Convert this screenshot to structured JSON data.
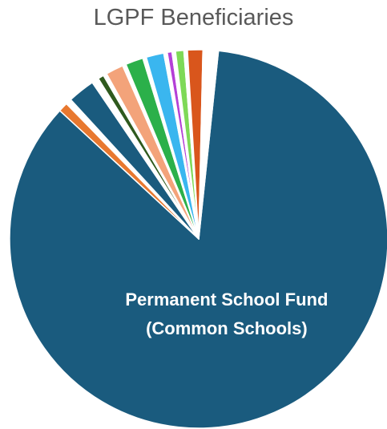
{
  "chart_data": {
    "type": "pie",
    "title": "LGPF Beneficiaries",
    "start_angle_deg": 6,
    "slices": [
      {
        "label": "Permanent School Fund (Common Schools)",
        "label_lines": [
          "Permanent School Fund",
          "(Common Schools)"
        ],
        "value": 84.6,
        "color": "#1a5b7e"
      },
      {
        "label": "",
        "value": 0.8,
        "color": "#e8782f"
      },
      {
        "label": "",
        "value": 0.5,
        "color": "#ffffff"
      },
      {
        "label": "",
        "value": 2.3,
        "color": "#1a5b7e"
      },
      {
        "label": "",
        "value": 0.6,
        "color": "#ffffff"
      },
      {
        "label": "",
        "value": 0.5,
        "color": "#2f5a1e"
      },
      {
        "label": "",
        "value": 0.3,
        "color": "#ffffff"
      },
      {
        "label": "",
        "value": 1.5,
        "color": "#f3a37a"
      },
      {
        "label": "",
        "value": 0.3,
        "color": "#ffffff"
      },
      {
        "label": "",
        "value": 1.5,
        "color": "#2bb04a"
      },
      {
        "label": "",
        "value": 0.3,
        "color": "#ffffff"
      },
      {
        "label": "",
        "value": 1.5,
        "color": "#3ab6ef"
      },
      {
        "label": "",
        "value": 0.3,
        "color": "#ffffff"
      },
      {
        "label": "",
        "value": 0.4,
        "color": "#b440d6"
      },
      {
        "label": "",
        "value": 0.3,
        "color": "#ffffff"
      },
      {
        "label": "",
        "value": 0.7,
        "color": "#7ed957"
      },
      {
        "label": "",
        "value": 0.3,
        "color": "#ffffff"
      },
      {
        "label": "",
        "value": 1.3,
        "color": "#d9561c"
      },
      {
        "label": "",
        "value": 1.3,
        "color": "#ffffff"
      }
    ]
  }
}
